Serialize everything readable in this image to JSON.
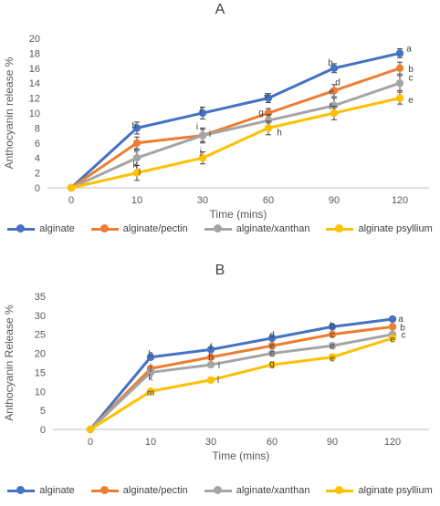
{
  "chart_data": [
    {
      "type": "line",
      "title": "A",
      "xlabel": "Time (mins)",
      "ylabel": "Anthocyanin release %",
      "categories": [
        "0",
        "10",
        "30",
        "60",
        "90",
        "120"
      ],
      "ylim": [
        0,
        20
      ],
      "yticks": [
        0,
        2,
        4,
        6,
        8,
        10,
        12,
        14,
        16,
        18,
        20
      ],
      "grid": false,
      "legend_position": "bottom",
      "series": [
        {
          "name": "alginate",
          "color": "#4472C4",
          "values": [
            0,
            8,
            10,
            12,
            16,
            18
          ],
          "errors": [
            0,
            0.8,
            0.8,
            0.6,
            0.6,
            0.6
          ]
        },
        {
          "name": "alginate/pectin",
          "color": "#ED7D31",
          "values": [
            0,
            6,
            7,
            10,
            13,
            16
          ],
          "errors": [
            0,
            0.8,
            0.8,
            0.6,
            0.8,
            0.8
          ]
        },
        {
          "name": "alginate/xanthan",
          "color": "#A5A5A5",
          "values": [
            0,
            4,
            7,
            9,
            11,
            14
          ],
          "errors": [
            0,
            1.0,
            1.0,
            0.8,
            1.0,
            1.0
          ]
        },
        {
          "name": "alginate psyllium",
          "color": "#FFC000",
          "values": [
            0,
            2,
            4,
            8,
            10,
            12
          ],
          "errors": [
            0,
            1.0,
            0.8,
            0.9,
            0.9,
            0.8
          ]
        }
      ],
      "annotations": [
        {
          "text": "a",
          "category": 5,
          "y": 18.7,
          "dx": 10
        },
        {
          "text": "b",
          "category": 5,
          "y": 16,
          "dx": 12
        },
        {
          "text": "c",
          "category": 5,
          "y": 14.8,
          "dx": 12
        },
        {
          "text": "e",
          "category": 5,
          "y": 11.8,
          "dx": 12
        },
        {
          "text": "b",
          "category": 4,
          "y": 16.8,
          "dx": -4
        },
        {
          "text": "d",
          "category": 4,
          "y": 14.2,
          "dx": 4
        },
        {
          "text": "e",
          "category": 4,
          "y": 13.0,
          "dx": -3
        },
        {
          "text": "f",
          "category": 4,
          "y": 11.0,
          "dx": -4
        },
        {
          "text": "e",
          "category": 3,
          "y": 12.5,
          "dx": -2
        },
        {
          "text": "g",
          "category": 3,
          "y": 10.2,
          "dx": -8
        },
        {
          "text": "h",
          "category": 3,
          "y": 7.5,
          "dx": 12
        },
        {
          "text": "f",
          "category": 2,
          "y": 10.3,
          "dx": -2
        },
        {
          "text": "i",
          "category": 2,
          "y": 7.3,
          "dx": 8
        },
        {
          "text": "i",
          "category": 2,
          "y": 8.3,
          "dx": -6
        },
        {
          "text": "j",
          "category": 2,
          "y": 5.0,
          "dx": -2
        },
        {
          "text": "h",
          "category": 1,
          "y": 8.4,
          "dx": -3
        },
        {
          "text": "i",
          "category": 1,
          "y": 5.2,
          "dx": -2
        },
        {
          "text": "k",
          "category": 1,
          "y": 3.2,
          "dx": -2
        },
        {
          "text": "l",
          "category": 1,
          "y": 2.2,
          "dx": 3
        }
      ]
    },
    {
      "type": "line",
      "title": "B",
      "xlabel": "Time (mins)",
      "ylabel": "Anthocyanin Release %",
      "categories": [
        "0",
        "10",
        "30",
        "60",
        "90",
        "120"
      ],
      "ylim": [
        0,
        35
      ],
      "yticks": [
        0,
        5,
        10,
        15,
        20,
        25,
        30,
        35
      ],
      "grid": false,
      "legend_position": "bottom",
      "series": [
        {
          "name": "alginate",
          "color": "#4472C4",
          "values": [
            0,
            19,
            21,
            24,
            27,
            29
          ],
          "errors": [
            0,
            0.6,
            0.6,
            0.6,
            0.6,
            0.5
          ]
        },
        {
          "name": "alginate/pectin",
          "color": "#ED7D31",
          "values": [
            0,
            16,
            19,
            22,
            25,
            27
          ],
          "errors": [
            0,
            0.6,
            0.6,
            0.6,
            0.6,
            0.6
          ]
        },
        {
          "name": "alginate/xanthan",
          "color": "#A5A5A5",
          "values": [
            0,
            15,
            17,
            20,
            22,
            25
          ],
          "errors": [
            0,
            0.6,
            0.6,
            0.6,
            0.6,
            0.6
          ]
        },
        {
          "name": "alginate psyllium",
          "color": "#FFC000",
          "values": [
            0,
            10,
            13,
            17,
            19,
            24
          ],
          "errors": [
            0,
            0.5,
            0.6,
            0.6,
            0.6,
            0.6
          ]
        }
      ],
      "annotations": [
        {
          "text": "a",
          "category": 5,
          "y": 29.2,
          "dx": 9
        },
        {
          "text": "b",
          "category": 5,
          "y": 27,
          "dx": 11
        },
        {
          "text": "c",
          "category": 5,
          "y": 25,
          "dx": 12
        },
        {
          "text": "e",
          "category": 5,
          "y": 23.8,
          "dx": 0
        },
        {
          "text": "b",
          "category": 4,
          "y": 27.5,
          "dx": 0
        },
        {
          "text": "c",
          "category": 4,
          "y": 25,
          "dx": 0
        },
        {
          "text": "e",
          "category": 4,
          "y": 22.2,
          "dx": 0
        },
        {
          "text": "e",
          "category": 4,
          "y": 18.8,
          "dx": 0
        },
        {
          "text": "d",
          "category": 3,
          "y": 25,
          "dx": 0
        },
        {
          "text": "e",
          "category": 3,
          "y": 22.2,
          "dx": 0
        },
        {
          "text": "e",
          "category": 3,
          "y": 20.2,
          "dx": 0
        },
        {
          "text": "g",
          "category": 3,
          "y": 17.5,
          "dx": 0
        },
        {
          "text": "f",
          "category": 2,
          "y": 21.8,
          "dx": 0
        },
        {
          "text": "h",
          "category": 2,
          "y": 19.2,
          "dx": 0
        },
        {
          "text": "i",
          "category": 2,
          "y": 17,
          "dx": 9
        },
        {
          "text": "l",
          "category": 2,
          "y": 13.2,
          "dx": 8
        },
        {
          "text": "h",
          "category": 1,
          "y": 20,
          "dx": 0
        },
        {
          "text": "j",
          "category": 1,
          "y": 16.6,
          "dx": 0
        },
        {
          "text": "k",
          "category": 1,
          "y": 13.8,
          "dx": 0
        },
        {
          "text": "m",
          "category": 1,
          "y": 9.8,
          "dx": 0
        }
      ]
    }
  ]
}
